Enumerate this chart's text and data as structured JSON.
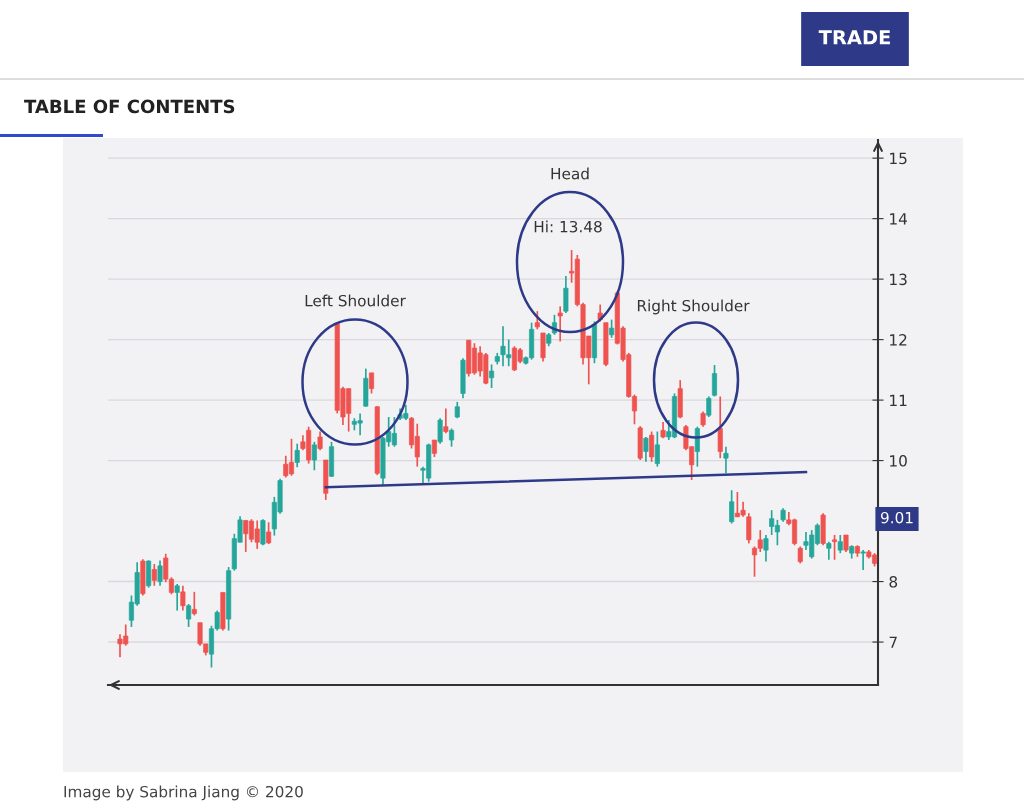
{
  "chart_data": {
    "type": "candlestick",
    "categories": [
      null,
      null,
      null,
      null,
      null,
      null,
      null,
      null,
      null,
      null,
      null,
      null,
      null,
      null,
      null,
      null,
      null,
      null,
      null,
      null,
      null,
      null,
      null,
      null,
      null,
      null,
      null,
      null,
      null,
      null,
      null,
      null,
      null,
      null,
      null,
      null,
      null,
      null,
      null,
      null,
      null,
      null,
      null,
      null,
      null,
      null,
      null,
      null,
      null,
      null,
      null,
      null,
      null,
      null,
      null,
      null,
      null,
      null,
      null,
      null,
      null,
      null,
      null,
      null,
      null,
      null,
      null,
      null,
      null,
      null,
      null,
      null,
      null,
      null,
      null,
      null,
      null,
      null,
      null,
      null,
      null,
      null,
      null,
      null,
      null,
      null,
      null,
      null,
      null,
      null,
      null,
      null,
      null,
      null,
      null,
      null,
      null,
      null,
      null,
      null,
      null,
      null,
      null,
      null,
      null,
      null,
      null,
      null,
      null,
      null,
      null,
      null,
      null,
      null,
      null,
      null,
      null,
      null,
      null,
      null,
      null,
      null,
      null,
      null,
      null,
      null,
      null,
      null,
      null,
      null,
      null,
      null,
      null
    ],
    "ohlc": [
      [
        7.05,
        7.13,
        6.75,
        6.97
      ],
      [
        7.1,
        7.29,
        6.94,
        6.97
      ],
      [
        7.36,
        7.77,
        7.25,
        7.66
      ],
      [
        7.63,
        8.32,
        7.6,
        8.15
      ],
      [
        8.34,
        8.37,
        7.77,
        7.8
      ],
      [
        7.93,
        8.35,
        7.9,
        8.34
      ],
      [
        8.2,
        8.29,
        7.93,
        8.02
      ],
      [
        8.0,
        8.35,
        7.93,
        8.26
      ],
      [
        8.39,
        8.46,
        7.99,
        8.04
      ],
      [
        8.04,
        8.07,
        7.79,
        7.82
      ],
      [
        7.82,
        7.96,
        7.52,
        7.93
      ],
      [
        7.83,
        7.93,
        7.52,
        7.6
      ],
      [
        7.38,
        7.63,
        7.25,
        7.6
      ],
      [
        7.54,
        7.83,
        7.44,
        7.47
      ],
      [
        7.32,
        7.32,
        6.94,
        6.97
      ],
      [
        6.97,
        6.97,
        6.78,
        6.83
      ],
      [
        6.8,
        7.27,
        6.58,
        7.22
      ],
      [
        7.22,
        7.52,
        7.19,
        7.49
      ],
      [
        7.82,
        7.82,
        7.19,
        7.22
      ],
      [
        7.38,
        8.24,
        7.19,
        8.18
      ],
      [
        8.21,
        8.79,
        8.18,
        8.71
      ],
      [
        8.65,
        9.08,
        8.65,
        9.02
      ],
      [
        9.01,
        9.01,
        8.49,
        8.79
      ],
      [
        9.0,
        9.03,
        8.65,
        8.7
      ],
      [
        8.87,
        9.01,
        8.54,
        8.65
      ],
      [
        8.62,
        9.03,
        8.6,
        9.01
      ],
      [
        8.82,
        8.98,
        8.62,
        8.64
      ],
      [
        8.87,
        9.4,
        8.76,
        9.31
      ],
      [
        9.15,
        9.7,
        9.12,
        9.67
      ],
      [
        9.94,
        10.08,
        9.72,
        9.75
      ],
      [
        9.97,
        10.36,
        9.75,
        9.78
      ],
      [
        9.97,
        10.28,
        9.89,
        10.17
      ],
      [
        10.31,
        10.42,
        10.17,
        10.2
      ],
      [
        10.5,
        10.56,
        9.95,
        10.01
      ],
      [
        10.01,
        10.31,
        9.84,
        10.26
      ],
      [
        10.39,
        10.48,
        10.17,
        10.2
      ],
      [
        10.01,
        10.01,
        9.35,
        9.46
      ],
      [
        9.74,
        10.31,
        9.73,
        10.23
      ],
      [
        12.27,
        12.29,
        10.78,
        10.83
      ],
      [
        11.19,
        11.22,
        10.59,
        10.72
      ],
      [
        11.19,
        11.19,
        10.48,
        10.78
      ],
      [
        10.6,
        10.7,
        10.5,
        10.65
      ],
      [
        10.62,
        10.78,
        10.42,
        10.66
      ],
      [
        10.9,
        11.52,
        10.89,
        11.36
      ],
      [
        11.45,
        11.45,
        11.11,
        11.19
      ],
      [
        10.89,
        10.9,
        9.76,
        9.79
      ],
      [
        9.71,
        10.39,
        9.6,
        10.37
      ],
      [
        10.31,
        10.72,
        10.23,
        10.48
      ],
      [
        10.26,
        10.72,
        10.23,
        10.45
      ],
      [
        10.7,
        10.86,
        10.67,
        10.76
      ],
      [
        10.7,
        10.92,
        10.67,
        10.78
      ],
      [
        10.7,
        10.72,
        10.2,
        10.26
      ],
      [
        10.4,
        10.61,
        9.9,
        10.06
      ],
      [
        9.84,
        9.9,
        9.62,
        9.87
      ],
      [
        9.71,
        10.28,
        9.65,
        10.26
      ],
      [
        10.34,
        10.34,
        10.06,
        10.12
      ],
      [
        10.31,
        10.7,
        10.28,
        10.67
      ],
      [
        10.56,
        10.86,
        10.45,
        10.48
      ],
      [
        10.34,
        10.53,
        10.23,
        10.5
      ],
      [
        10.72,
        10.97,
        10.7,
        10.89
      ],
      [
        11.11,
        11.69,
        11.03,
        11.66
      ],
      [
        11.99,
        11.99,
        11.39,
        11.44
      ],
      [
        11.86,
        11.94,
        11.42,
        11.45
      ],
      [
        11.78,
        11.89,
        11.39,
        11.48
      ],
      [
        11.75,
        11.78,
        11.26,
        11.28
      ],
      [
        11.37,
        11.59,
        11.2,
        11.48
      ],
      [
        11.64,
        11.78,
        11.59,
        11.72
      ],
      [
        11.75,
        12.22,
        11.56,
        11.89
      ],
      [
        11.7,
        12.0,
        11.56,
        11.75
      ],
      [
        11.86,
        11.89,
        11.48,
        11.5
      ],
      [
        11.83,
        11.86,
        11.61,
        11.64
      ],
      [
        11.61,
        11.72,
        11.59,
        11.7
      ],
      [
        11.7,
        12.28,
        11.67,
        12.17
      ],
      [
        12.28,
        12.47,
        12.17,
        12.21
      ],
      [
        12.11,
        12.11,
        11.64,
        11.7
      ],
      [
        11.94,
        12.11,
        11.89,
        12.08
      ],
      [
        12.11,
        12.41,
        12.08,
        12.28
      ],
      [
        12.44,
        12.55,
        11.97,
        12.39
      ],
      [
        12.47,
        13.05,
        12.44,
        12.85
      ],
      [
        13.13,
        13.48,
        12.94,
        13.1
      ],
      [
        13.33,
        13.4,
        12.55,
        12.58
      ],
      [
        12.58,
        12.61,
        11.59,
        11.7
      ],
      [
        12.06,
        12.06,
        11.26,
        11.7
      ],
      [
        11.7,
        12.3,
        11.61,
        12.25
      ],
      [
        12.44,
        12.58,
        12.3,
        12.33
      ],
      [
        12.28,
        12.28,
        11.56,
        11.59
      ],
      [
        12.08,
        12.33,
        12.03,
        12.19
      ],
      [
        12.77,
        12.8,
        11.92,
        11.94
      ],
      [
        12.19,
        12.22,
        11.64,
        11.67
      ],
      [
        11.75,
        11.78,
        11.04,
        11.06
      ],
      [
        11.06,
        11.09,
        10.6,
        10.82
      ],
      [
        10.54,
        10.57,
        10.01,
        10.04
      ],
      [
        10.15,
        10.39,
        9.98,
        10.37
      ],
      [
        10.42,
        10.48,
        9.98,
        10.06
      ],
      [
        9.95,
        10.48,
        9.9,
        10.26
      ],
      [
        10.5,
        10.64,
        10.37,
        10.39
      ],
      [
        10.39,
        10.67,
        10.34,
        10.48
      ],
      [
        10.39,
        11.11,
        10.37,
        11.06
      ],
      [
        11.19,
        11.33,
        10.7,
        10.72
      ],
      [
        10.56,
        10.59,
        10.17,
        10.2
      ],
      [
        10.23,
        10.23,
        9.68,
        9.93
      ],
      [
        10.15,
        10.56,
        9.9,
        10.53
      ],
      [
        10.78,
        10.81,
        10.56,
        10.59
      ],
      [
        10.75,
        11.06,
        10.72,
        11.03
      ],
      [
        11.08,
        11.58,
        11.06,
        11.44
      ],
      [
        10.53,
        11.06,
        10.04,
        10.15
      ],
      [
        10.04,
        10.23,
        9.79,
        10.12
      ],
      [
        8.99,
        9.51,
        8.96,
        9.32
      ],
      [
        9.13,
        9.48,
        9.07,
        9.07
      ],
      [
        9.18,
        9.32,
        9.07,
        9.1
      ],
      [
        9.07,
        9.13,
        8.63,
        8.69
      ],
      [
        8.55,
        8.58,
        8.08,
        8.44
      ],
      [
        8.69,
        8.85,
        8.49,
        8.55
      ],
      [
        8.52,
        8.77,
        8.33,
        8.71
      ],
      [
        8.91,
        9.18,
        8.77,
        9.04
      ],
      [
        8.82,
        9.02,
        8.6,
        8.93
      ],
      [
        9.02,
        9.21,
        8.99,
        9.18
      ],
      [
        9.02,
        9.15,
        8.93,
        8.96
      ],
      [
        9.02,
        9.04,
        8.6,
        8.63
      ],
      [
        8.55,
        8.58,
        8.3,
        8.33
      ],
      [
        8.6,
        8.82,
        8.52,
        8.66
      ],
      [
        8.41,
        8.85,
        8.38,
        8.77
      ],
      [
        8.63,
        8.96,
        8.6,
        8.93
      ],
      [
        9.1,
        9.13,
        8.6,
        8.63
      ],
      [
        8.55,
        8.66,
        8.36,
        8.63
      ],
      [
        8.69,
        8.77,
        8.36,
        8.66
      ],
      [
        8.52,
        8.77,
        8.47,
        8.66
      ],
      [
        8.77,
        8.77,
        8.49,
        8.52
      ],
      [
        8.47,
        8.6,
        8.38,
        8.58
      ],
      [
        8.58,
        8.6,
        8.41,
        8.47
      ],
      [
        8.47,
        8.52,
        8.19,
        8.49
      ],
      [
        8.49,
        8.52,
        8.38,
        8.41
      ],
      [
        8.44,
        8.47,
        8.25,
        8.3
      ]
    ],
    "colors": [
      "#ef5350",
      "#ef5350",
      "#26a69a",
      "#26a69a",
      "#ef5350",
      "#26a69a",
      "#ef5350",
      "#26a69a",
      "#ef5350",
      "#ef5350",
      "#26a69a",
      "#ef5350",
      "#26a69a",
      "#ef5350",
      "#ef5350",
      "#ef5350",
      "#26a69a",
      "#26a69a",
      "#ef5350",
      "#26a69a",
      "#26a69a",
      "#26a69a",
      "#ef5350",
      "#ef5350",
      "#ef5350",
      "#26a69a",
      "#ef5350",
      "#26a69a",
      "#26a69a",
      "#ef5350",
      "#ef5350",
      "#26a69a",
      "#ef5350",
      "#ef5350",
      "#26a69a",
      "#ef5350",
      "#ef5350",
      "#26a69a",
      "#ef5350",
      "#ef5350",
      "#ef5350",
      "#26a69a",
      "#26a69a",
      "#26a69a",
      "#ef5350",
      "#ef5350",
      "#26a69a",
      "#26a69a",
      "#26a69a",
      "#26a69a",
      "#26a69a",
      "#ef5350",
      "#ef5350",
      "#26a69a",
      "#26a69a",
      "#ef5350",
      "#26a69a",
      "#ef5350",
      "#26a69a",
      "#26a69a",
      "#26a69a",
      "#ef5350",
      "#ef5350",
      "#ef5350",
      "#ef5350",
      "#26a69a",
      "#26a69a",
      "#26a69a",
      "#26a69a",
      "#ef5350",
      "#ef5350",
      "#26a69a",
      "#26a69a",
      "#ef5350",
      "#ef5350",
      "#26a69a",
      "#26a69a",
      "#ef5350",
      "#26a69a",
      "#ef5350",
      "#ef5350",
      "#ef5350",
      "#ef5350",
      "#26a69a",
      "#ef5350",
      "#ef5350",
      "#26a69a",
      "#ef5350",
      "#ef5350",
      "#ef5350",
      "#ef5350",
      "#ef5350",
      "#26a69a",
      "#ef5350",
      "#26a69a",
      "#ef5350",
      "#26a69a",
      "#26a69a",
      "#ef5350",
      "#ef5350",
      "#ef5350",
      "#26a69a",
      "#ef5350",
      "#26a69a",
      "#26a69a",
      "#ef5350",
      "#26a69a",
      "#26a69a",
      "#ef5350",
      "#ef5350",
      "#ef5350",
      "#ef5350",
      "#ef5350",
      "#26a69a",
      "#26a69a",
      "#26a69a",
      "#26a69a",
      "#ef5350",
      "#ef5350",
      "#ef5350",
      "#26a69a",
      "#26a69a",
      "#26a69a",
      "#ef5350",
      "#26a69a",
      "#ef5350",
      "#26a69a",
      "#ef5350",
      "#26a69a",
      "#ef5350",
      "#26a69a",
      "#ef5350",
      "#ef5350"
    ],
    "series": [
      {
        "type": "line",
        "color": "#2e3a87",
        "values": [
          null,
          null,
          null,
          null,
          null,
          null,
          null,
          null,
          null,
          null,
          null,
          null,
          null,
          null,
          null,
          null,
          null,
          null,
          null,
          null,
          null,
          null,
          null,
          null,
          null,
          null,
          null,
          null,
          null,
          null,
          null,
          null,
          null,
          null,
          null,
          null,
          9.56,
          null,
          null,
          null,
          null,
          null,
          null,
          null,
          null,
          null,
          null,
          null,
          null,
          null,
          null,
          null,
          null,
          null,
          null,
          null,
          null,
          null,
          null,
          null,
          null,
          null,
          null,
          null,
          null,
          null,
          null,
          null,
          null,
          null,
          null,
          null,
          null,
          null,
          null,
          null,
          null,
          null,
          null,
          null,
          null,
          null,
          null,
          null,
          null,
          null,
          null,
          null,
          null,
          null,
          null,
          null,
          null,
          null,
          null,
          null,
          null,
          null,
          null,
          null,
          null,
          null,
          null,
          null,
          null,
          null,
          null,
          null,
          null,
          null,
          null,
          null,
          null,
          null,
          null,
          null,
          null,
          null,
          null,
          null,
          9.81,
          null,
          null,
          null,
          null,
          null,
          null,
          null,
          null,
          null,
          null,
          null,
          null
        ]
      }
    ],
    "ylim": [
      6.29,
      15.3
    ],
    "yticks": [
      7,
      8,
      10,
      11,
      12,
      13,
      14,
      15
    ],
    "grid": "y",
    "annotations": [
      "Left Shoulder",
      "Head",
      "Hi: 13.48",
      "Right Shoulder",
      "9.01",
      "Image by Sabrina Jiang © 2020",
      "TABLE OF CONTENTS",
      "TRADE"
    ]
  }
}
